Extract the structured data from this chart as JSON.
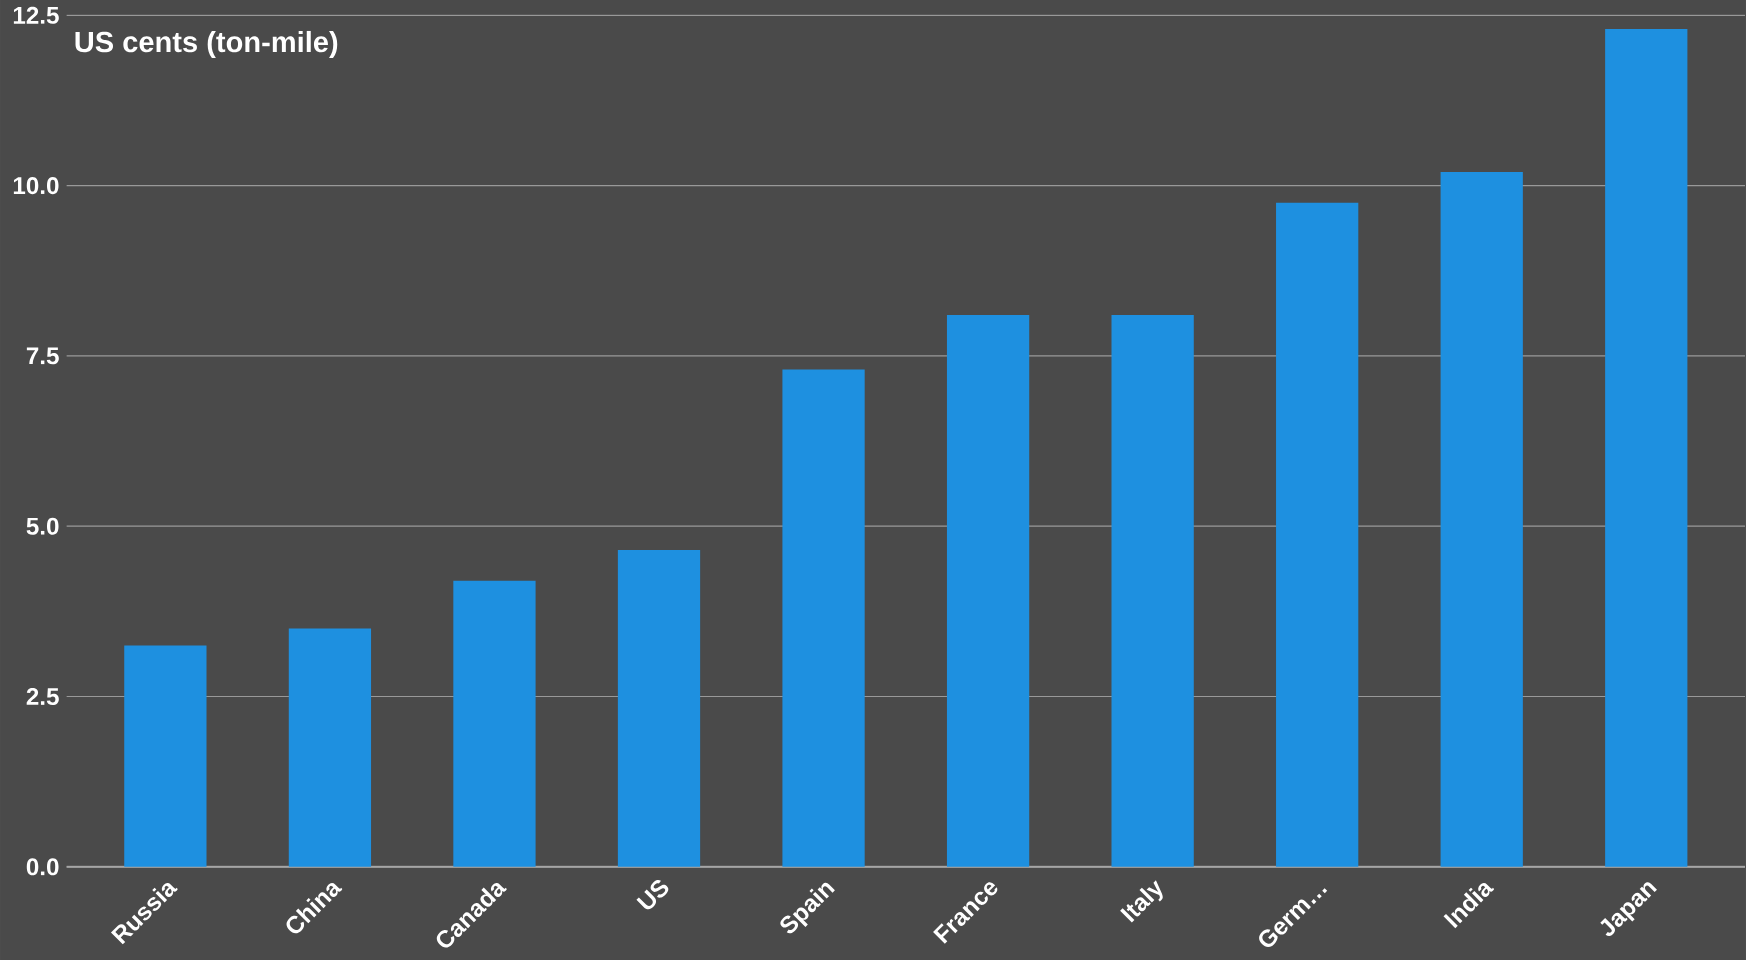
{
  "chart_data": {
    "type": "bar",
    "title": "US cents (ton-mile)",
    "categories": [
      "Russia",
      "China",
      "Canada",
      "US",
      "Spain",
      "France",
      "Italy",
      "Germ…",
      "India",
      "Japan"
    ],
    "values": [
      3.25,
      3.5,
      4.2,
      4.65,
      7.3,
      8.1,
      8.1,
      9.75,
      10.2,
      12.3
    ],
    "color": "#1e90e0",
    "ylim": [
      0,
      12.5
    ],
    "yticks": [
      {
        "value": 0,
        "label": "0.0"
      },
      {
        "value": 2.5,
        "label": "2.5"
      },
      {
        "value": 5,
        "label": "5.0"
      },
      {
        "value": 7.5,
        "label": "7.5"
      },
      {
        "value": 10,
        "label": "10.0"
      },
      {
        "value": 12.5,
        "label": "12.5"
      }
    ],
    "grid": "y"
  }
}
